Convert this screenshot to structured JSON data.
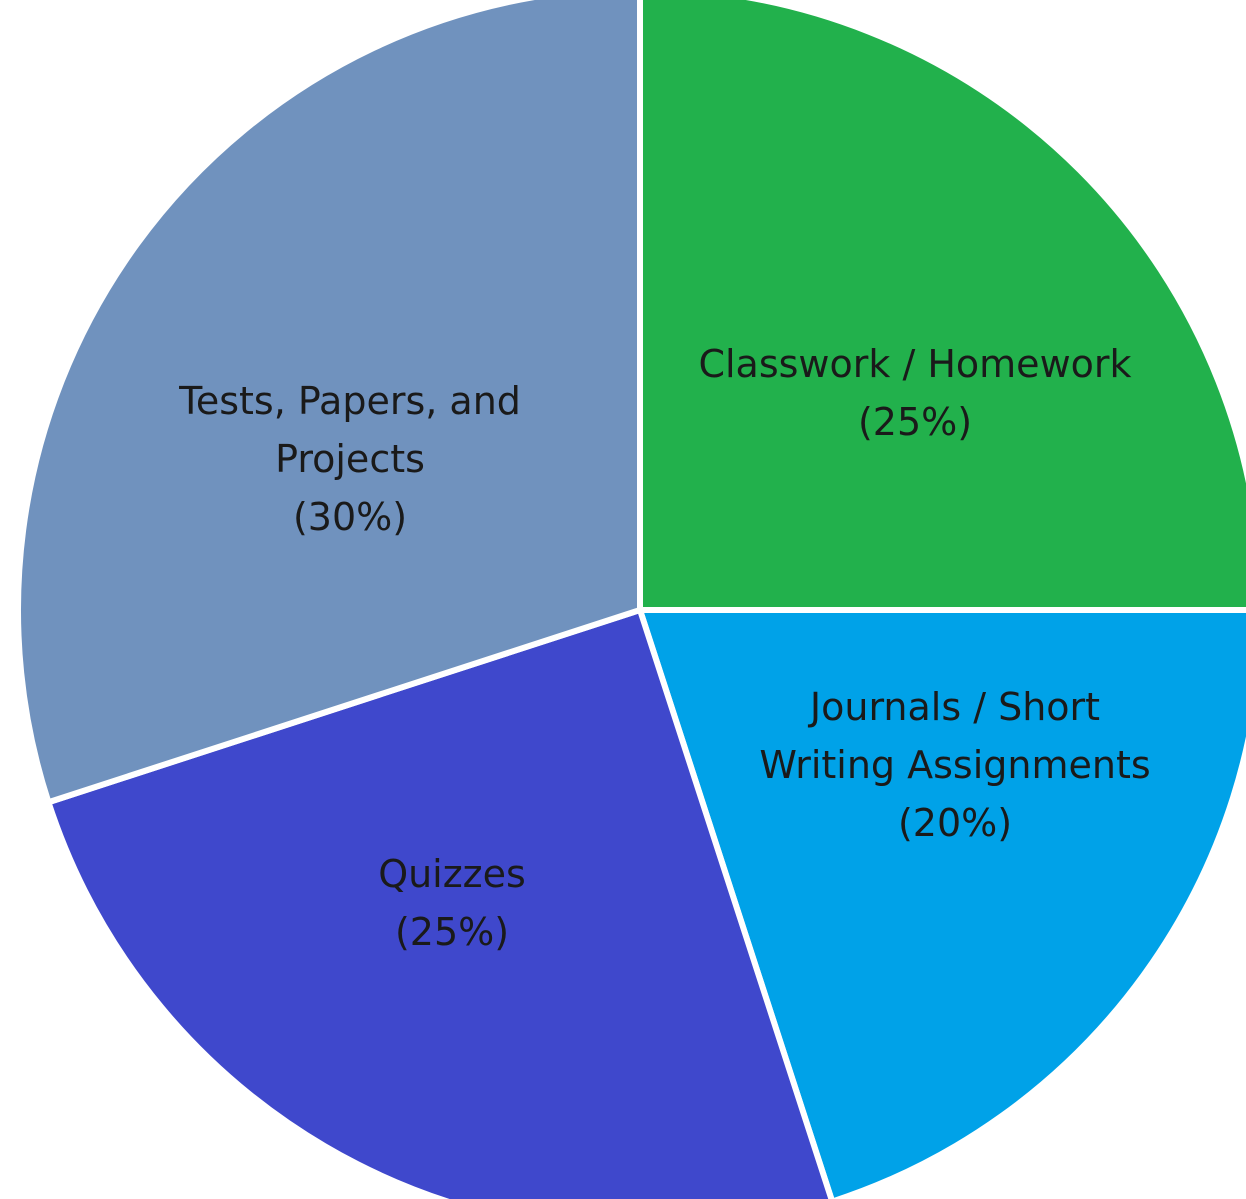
{
  "chart_data": {
    "type": "pie",
    "title": "",
    "slices": [
      {
        "name": "Classwork / Homework",
        "value": 25,
        "label_lines": [
          "Classwork / Homework",
          "(25%)"
        ],
        "color": "#22b14c"
      },
      {
        "name": "Journals / Short Writing Assignments",
        "value": 20,
        "label_lines": [
          "Journals / Short",
          "Writing Assignments",
          "(20%)"
        ],
        "color": "#00a2e8"
      },
      {
        "name": "Quizzes",
        "value": 25,
        "label_lines": [
          "Quizzes",
          "(25%)"
        ],
        "color": "#3f48cc"
      },
      {
        "name": "Tests, Papers, and Projects",
        "value": 30,
        "label_lines": [
          "Tests, Papers, and",
          "Projects",
          "(30%)"
        ],
        "color": "#7092be"
      }
    ],
    "start_angle_deg": 0,
    "direction": "clockwise",
    "legend": "none",
    "separator_color": "#ffffff"
  }
}
